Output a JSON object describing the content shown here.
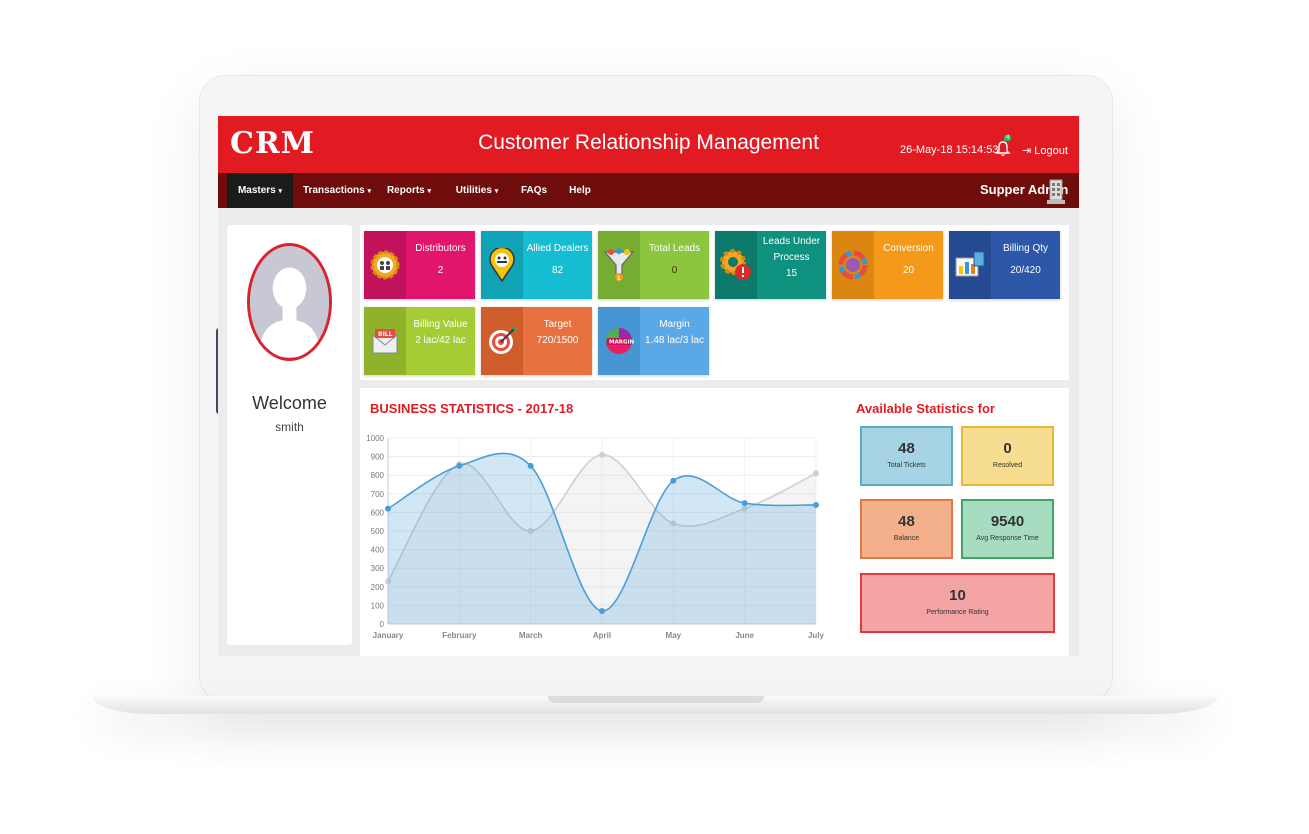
{
  "header": {
    "logo": "CRM",
    "title": "Customer Relationship Management",
    "datetime": "26-May-18  15:14:53",
    "notification_count": "4",
    "logout_label": "Logout"
  },
  "nav": {
    "items": [
      {
        "label": "Masters",
        "caret": "▾"
      },
      {
        "label": "Transactions",
        "caret": "▾"
      },
      {
        "label": "Reports",
        "caret": "▾"
      },
      {
        "label": "Utilities",
        "caret": "▾"
      },
      {
        "label": "FAQs",
        "caret": ""
      },
      {
        "label": "Help",
        "caret": ""
      }
    ],
    "user": "Supper Admin"
  },
  "profile": {
    "welcome": "Welcome",
    "name": "smith"
  },
  "tiles": [
    {
      "title": "Distributors",
      "value": "2",
      "bg": "#e1156b",
      "icon_bg": "#c3125c",
      "icon": "gear-people-icon"
    },
    {
      "title": "Allied Dealers",
      "value": "82",
      "bg": "#16bdd2",
      "icon_bg": "#10a3b6",
      "icon": "dealer-pin-icon"
    },
    {
      "title": "Total Leads",
      "value": "0",
      "bg": "#8cc63f",
      "icon_bg": "#76ac32",
      "icon": "funnel-icon"
    },
    {
      "title": "Leads Under Process",
      "value": "15",
      "bg": "#0f9180",
      "icon_bg": "#0b7a6b",
      "icon": "gear-alert-icon"
    },
    {
      "title": "Conversion",
      "value": "20",
      "bg": "#f4991a",
      "icon_bg": "#dc8612",
      "icon": "cycle-icon"
    },
    {
      "title": "Billing Qty",
      "value": "20/420",
      "bg": "#2d57a8",
      "icon_bg": "#244a92",
      "icon": "billing-chart-icon"
    },
    {
      "title": "Billing Value",
      "value": "2 lac/42 lac",
      "bg": "#a5cc35",
      "icon_bg": "#8fb22a",
      "icon": "bill-envelope-icon"
    },
    {
      "title": "Target",
      "value": "720/1500",
      "bg": "#e8723f",
      "icon_bg": "#d05d2c",
      "icon": "target-icon"
    },
    {
      "title": "Margin",
      "value": "1.48 lac/3 lac",
      "bg": "#5aa9e6",
      "icon_bg": "#4795d2",
      "icon": "margin-badge-icon"
    }
  ],
  "stats_title": "BUSINESS STATISTICS - 2017-18",
  "available_title": "Available Statistics for",
  "stat_boxes": [
    {
      "value": "48",
      "label": "Total Tickets",
      "bg": "#a7d4e4",
      "border": "#5aaac8"
    },
    {
      "value": "0",
      "label": "Resolved",
      "bg": "#f6dd8f",
      "border": "#e2b93a"
    },
    {
      "value": "48",
      "label": "Balance",
      "bg": "#f3b08a",
      "border": "#e17846"
    },
    {
      "value": "9540",
      "label": "Avg Response Time",
      "bg": "#a8dcc0",
      "border": "#3fa763"
    },
    {
      "value": "10",
      "label": "Performance Rating",
      "bg": "#f4a4a4",
      "border": "#e03a3a"
    }
  ],
  "chart_data": {
    "type": "area",
    "x": [
      "January",
      "February",
      "March",
      "April",
      "May",
      "June",
      "July"
    ],
    "series": [
      {
        "values": [
          620,
          850,
          850,
          70,
          770,
          650,
          640
        ],
        "color": "#4a9ed8"
      },
      {
        "values": [
          230,
          860,
          500,
          910,
          540,
          620,
          810
        ],
        "color": "#cfcfcf"
      }
    ],
    "ylim": [
      0,
      1000
    ],
    "yticks": [
      "0",
      "100",
      "200",
      "300",
      "400",
      "500",
      "600",
      "700",
      "800",
      "900",
      "1000"
    ],
    "grid": true
  }
}
